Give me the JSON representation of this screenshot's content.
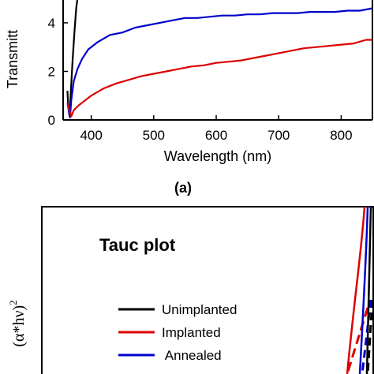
{
  "chart_data": [
    {
      "type": "line",
      "panel_label": "(a)",
      "xlabel": "Wavelength (nm)",
      "ylabel": "Transmitt",
      "xlim": [
        355,
        850
      ],
      "ylim": [
        0,
        5.2
      ],
      "x_ticks": [
        "400",
        "500",
        "600",
        "700",
        "800"
      ],
      "y_ticks": [
        "0",
        "2",
        "4"
      ],
      "series": [
        {
          "name": "Unimplanted",
          "color": "#000000",
          "points": [
            [
              362,
              1.2
            ],
            [
              363,
              0.6
            ],
            [
              365,
              0.2
            ],
            [
              367,
              1.0
            ],
            [
              370,
              2.4
            ],
            [
              373,
              3.6
            ],
            [
              376,
              4.6
            ],
            [
              379,
              5.2
            ]
          ]
        },
        {
          "name": "Annealed",
          "color": "#0000cc",
          "points": [
            [
              362,
              0.7
            ],
            [
              364,
              0.4
            ],
            [
              366,
              0.1
            ],
            [
              368,
              0.8
            ],
            [
              372,
              1.6
            ],
            [
              378,
              2.1
            ],
            [
              385,
              2.5
            ],
            [
              395,
              2.9
            ],
            [
              410,
              3.2
            ],
            [
              430,
              3.5
            ],
            [
              450,
              3.6
            ],
            [
              470,
              3.8
            ],
            [
              490,
              3.9
            ],
            [
              510,
              4.0
            ],
            [
              530,
              4.1
            ],
            [
              550,
              4.2
            ],
            [
              570,
              4.2
            ],
            [
              590,
              4.25
            ],
            [
              610,
              4.3
            ],
            [
              630,
              4.3
            ],
            [
              650,
              4.35
            ],
            [
              670,
              4.35
            ],
            [
              690,
              4.4
            ],
            [
              710,
              4.4
            ],
            [
              730,
              4.4
            ],
            [
              750,
              4.45
            ],
            [
              770,
              4.45
            ],
            [
              790,
              4.45
            ],
            [
              810,
              4.5
            ],
            [
              830,
              4.5
            ],
            [
              850,
              4.6
            ]
          ]
        },
        {
          "name": "Implanted",
          "color": "#dd0000",
          "points": [
            [
              362,
              0.7
            ],
            [
              364,
              0.5
            ],
            [
              366,
              0.3
            ],
            [
              368,
              0.15
            ],
            [
              372,
              0.4
            ],
            [
              380,
              0.6
            ],
            [
              390,
              0.8
            ],
            [
              400,
              1.0
            ],
            [
              420,
              1.3
            ],
            [
              440,
              1.5
            ],
            [
              460,
              1.65
            ],
            [
              480,
              1.8
            ],
            [
              500,
              1.9
            ],
            [
              520,
              2.0
            ],
            [
              540,
              2.1
            ],
            [
              560,
              2.2
            ],
            [
              580,
              2.25
            ],
            [
              600,
              2.35
            ],
            [
              620,
              2.4
            ],
            [
              640,
              2.45
            ],
            [
              660,
              2.55
            ],
            [
              680,
              2.65
            ],
            [
              700,
              2.75
            ],
            [
              720,
              2.85
            ],
            [
              740,
              2.95
            ],
            [
              760,
              3.0
            ],
            [
              780,
              3.05
            ],
            [
              800,
              3.1
            ],
            [
              820,
              3.15
            ],
            [
              840,
              3.3
            ],
            [
              850,
              3.3
            ]
          ]
        }
      ]
    },
    {
      "type": "line",
      "title": "Tauc plot",
      "ylabel": "(α*hν)",
      "ylabel_power": "2",
      "legend": [
        {
          "label": "Unimplanted",
          "color": "#000000"
        },
        {
          "label": "Implanted",
          "color": "#dd0000"
        },
        {
          "label": " Annealed",
          "color": "#0000cc"
        }
      ]
    }
  ]
}
